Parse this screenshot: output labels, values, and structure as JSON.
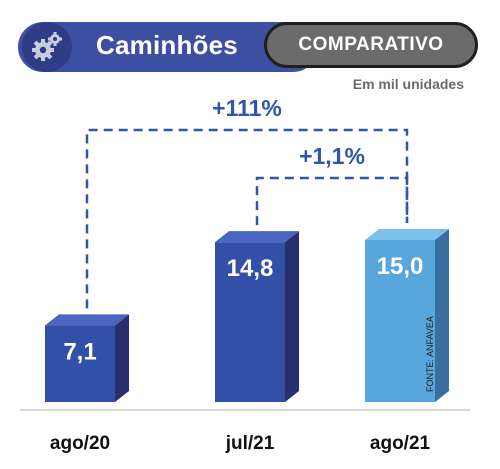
{
  "header": {
    "title": "Caminhões",
    "badge": "COMPARATIVO",
    "unit": "Em mil unidades"
  },
  "icons": {
    "header_icon": "gears-icon"
  },
  "colors": {
    "title_bar": "#3d4fa0",
    "bar_dark_front": "#3350a8",
    "bar_dark_side": "#26306e",
    "bar_dark_top": "#4a66c0",
    "bar_light_front": "#58a6dc",
    "bar_light_side": "#3a6da0",
    "bar_light_top": "#7cc0ea",
    "annotation": "#2f56a8",
    "axis_label": "#111111"
  },
  "source": "FONTE: ANFAVEA",
  "chart_data": {
    "type": "bar",
    "categories": [
      "ago/20",
      "jul/21",
      "ago/21"
    ],
    "values": [
      7.1,
      14.8,
      15.0
    ],
    "value_labels": [
      "7,1",
      "14,8",
      "15,0"
    ],
    "highlight_index": 2,
    "ylim": [
      0,
      15.0
    ],
    "grid": false,
    "annotations": [
      {
        "label": "+111%",
        "from": 0,
        "to": 2
      },
      {
        "label": "+1,1%",
        "from": 1,
        "to": 2
      }
    ]
  }
}
